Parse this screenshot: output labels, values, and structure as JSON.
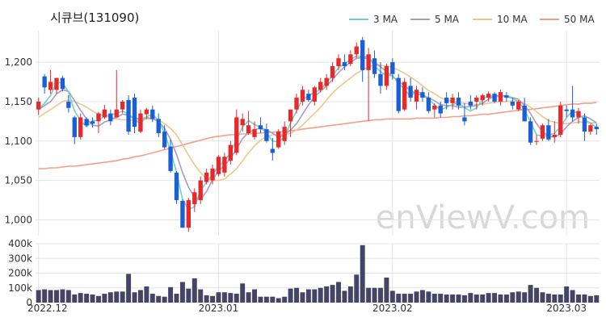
{
  "title": "시큐브(131090)",
  "watermark": "enViewV.com",
  "colors": {
    "up": "#e8282b",
    "down": "#1a5fd6",
    "ma3": "#6ed3c9",
    "ma5": "#a99bc9",
    "ma10": "#f0c58a",
    "ma50": "#f3a08a",
    "volume": "#444466",
    "grid": "#e4e4e4",
    "watermark": "#d8d8d8"
  },
  "chart_data": [
    {
      "type": "candlestick",
      "legend": [
        "3 MA",
        "5 MA",
        "10 MA",
        "50 MA"
      ],
      "legend_position": "top-right",
      "grid": true,
      "ylim": [
        980,
        1240
      ],
      "yticks": [
        1000,
        1050,
        1100,
        1150,
        1200
      ],
      "ytick_labels": [
        "1,000",
        "1,050",
        "1,100",
        "1,150",
        "1,200"
      ],
      "xtick_labels": [
        "2022.12",
        "2023.01",
        "2023.02",
        "2023.03"
      ],
      "xtick_index": [
        0,
        30,
        59,
        88
      ],
      "ohlc": [
        [
          1140,
          1155,
          1133,
          1150
        ],
        [
          1182,
          1185,
          1160,
          1168
        ],
        [
          1165,
          1190,
          1160,
          1175
        ],
        [
          1165,
          1180,
          1160,
          1180
        ],
        [
          1180,
          1183,
          1163,
          1166
        ],
        [
          1150,
          1158,
          1136,
          1142
        ],
        [
          1130,
          1132,
          1096,
          1105
        ],
        [
          1105,
          1135,
          1102,
          1130
        ],
        [
          1128,
          1130,
          1118,
          1120
        ],
        [
          1125,
          1130,
          1117,
          1122
        ],
        [
          1125,
          1137,
          1110,
          1135
        ],
        [
          1130,
          1146,
          1128,
          1140
        ],
        [
          1135,
          1140,
          1120,
          1125
        ],
        [
          1130,
          1190,
          1130,
          1140
        ],
        [
          1140,
          1152,
          1135,
          1150
        ],
        [
          1152,
          1158,
          1108,
          1112
        ],
        [
          1155,
          1160,
          1110,
          1118
        ],
        [
          1112,
          1140,
          1110,
          1135
        ],
        [
          1134,
          1142,
          1128,
          1140
        ],
        [
          1140,
          1145,
          1124,
          1128
        ],
        [
          1128,
          1135,
          1105,
          1110
        ],
        [
          1112,
          1120,
          1090,
          1092
        ],
        [
          1093,
          1102,
          1060,
          1062
        ],
        [
          1060,
          1062,
          1020,
          1025
        ],
        [
          1024,
          1026,
          990,
          990
        ],
        [
          990,
          1028,
          985,
          1025
        ],
        [
          1020,
          1040,
          1010,
          1035
        ],
        [
          1025,
          1055,
          1020,
          1050
        ],
        [
          1048,
          1065,
          1045,
          1060
        ],
        [
          1050,
          1070,
          1045,
          1065
        ],
        [
          1058,
          1082,
          1055,
          1080
        ],
        [
          1060,
          1085,
          1055,
          1080
        ],
        [
          1075,
          1100,
          1070,
          1095
        ],
        [
          1085,
          1140,
          1082,
          1130
        ],
        [
          1120,
          1135,
          1112,
          1128
        ],
        [
          1110,
          1138,
          1108,
          1120
        ],
        [
          1105,
          1125,
          1102,
          1115
        ],
        [
          1120,
          1130,
          1110,
          1115
        ],
        [
          1115,
          1122,
          1098,
          1100
        ],
        [
          1090,
          1104,
          1075,
          1085
        ],
        [
          1092,
          1115,
          1090,
          1112
        ],
        [
          1100,
          1125,
          1095,
          1118
        ],
        [
          1125,
          1140,
          1105,
          1140
        ],
        [
          1140,
          1160,
          1135,
          1155
        ],
        [
          1150,
          1170,
          1145,
          1165
        ],
        [
          1160,
          1165,
          1150,
          1152
        ],
        [
          1150,
          1170,
          1145,
          1168
        ],
        [
          1165,
          1180,
          1162,
          1175
        ],
        [
          1170,
          1185,
          1165,
          1180
        ],
        [
          1180,
          1200,
          1175,
          1195
        ],
        [
          1195,
          1210,
          1190,
          1205
        ],
        [
          1200,
          1210,
          1190,
          1195
        ],
        [
          1198,
          1215,
          1195,
          1210
        ],
        [
          1210,
          1225,
          1205,
          1220
        ],
        [
          1228,
          1232,
          1175,
          1190
        ],
        [
          1190,
          1218,
          1125,
          1210
        ],
        [
          1205,
          1215,
          1180,
          1185
        ],
        [
          1185,
          1200,
          1160,
          1170
        ],
        [
          1170,
          1198,
          1165,
          1195
        ],
        [
          1200,
          1205,
          1178,
          1185
        ],
        [
          1180,
          1185,
          1135,
          1138
        ],
        [
          1140,
          1180,
          1138,
          1175
        ],
        [
          1170,
          1180,
          1150,
          1155
        ],
        [
          1150,
          1170,
          1140,
          1165
        ],
        [
          1162,
          1168,
          1150,
          1155
        ],
        [
          1155,
          1162,
          1135,
          1138
        ],
        [
          1140,
          1148,
          1130,
          1145
        ],
        [
          1145,
          1150,
          1130,
          1135
        ],
        [
          1155,
          1162,
          1140,
          1148
        ],
        [
          1148,
          1160,
          1140,
          1155
        ],
        [
          1155,
          1162,
          1140,
          1145
        ],
        [
          1130,
          1148,
          1120,
          1125
        ],
        [
          1150,
          1158,
          1140,
          1145
        ],
        [
          1150,
          1158,
          1140,
          1155
        ],
        [
          1152,
          1160,
          1145,
          1158
        ],
        [
          1155,
          1163,
          1150,
          1160
        ],
        [
          1160,
          1162,
          1148,
          1150
        ],
        [
          1150,
          1165,
          1145,
          1162
        ],
        [
          1158,
          1162,
          1150,
          1155
        ],
        [
          1150,
          1155,
          1140,
          1145
        ],
        [
          1140,
          1152,
          1138,
          1150
        ],
        [
          1145,
          1155,
          1125,
          1125
        ],
        [
          1125,
          1130,
          1095,
          1098
        ],
        [
          1100,
          1108,
          1095,
          1100
        ],
        [
          1103,
          1122,
          1100,
          1120
        ],
        [
          1120,
          1128,
          1100,
          1102
        ],
        [
          1105,
          1125,
          1098,
          1108
        ],
        [
          1108,
          1150,
          1105,
          1145
        ],
        [
          1140,
          1145,
          1130,
          1138
        ],
        [
          1140,
          1170,
          1125,
          1130
        ],
        [
          1130,
          1142,
          1122,
          1138
        ],
        [
          1130,
          1135,
          1100,
          1112
        ],
        [
          1112,
          1122,
          1108,
          1120
        ],
        [
          1118,
          1122,
          1108,
          1115
        ]
      ],
      "ma3": [
        1140,
        1148,
        1158,
        1174,
        1174,
        1162,
        1138,
        1126,
        1118,
        1126,
        1126,
        1132,
        1133,
        1135,
        1138,
        1134,
        1127,
        1122,
        1131,
        1134,
        1126,
        1110,
        1088,
        1060,
        1026,
        1013,
        1017,
        1037,
        1048,
        1058,
        1068,
        1075,
        1085,
        1102,
        1118,
        1126,
        1121,
        1117,
        1110,
        1100,
        1099,
        1105,
        1123,
        1138,
        1153,
        1157,
        1162,
        1165,
        1174,
        1183,
        1193,
        1198,
        1203,
        1208,
        1207,
        1207,
        1195,
        1188,
        1183,
        1183,
        1173,
        1166,
        1156,
        1165,
        1158,
        1153,
        1146,
        1139,
        1143,
        1146,
        1149,
        1142,
        1138,
        1142,
        1153,
        1158,
        1156,
        1157,
        1156,
        1154,
        1150,
        1140,
        1124,
        1108,
        1106,
        1107,
        1110,
        1118,
        1130,
        1138,
        1135,
        1127,
        1123,
        1117
      ],
      "ma5": [
        1140,
        1145,
        1150,
        1160,
        1165,
        1163,
        1151,
        1139,
        1128,
        1120,
        1119,
        1124,
        1127,
        1130,
        1134,
        1133,
        1129,
        1128,
        1130,
        1128,
        1125,
        1116,
        1102,
        1083,
        1060,
        1041,
        1029,
        1026,
        1036,
        1051,
        1062,
        1069,
        1078,
        1090,
        1103,
        1111,
        1114,
        1117,
        1114,
        1110,
        1105,
        1108,
        1114,
        1122,
        1134,
        1146,
        1156,
        1163,
        1170,
        1178,
        1187,
        1194,
        1200,
        1205,
        1206,
        1204,
        1200,
        1194,
        1188,
        1182,
        1176,
        1170,
        1164,
        1160,
        1158,
        1155,
        1151,
        1146,
        1145,
        1145,
        1143,
        1143,
        1144,
        1145,
        1148,
        1153,
        1157,
        1158,
        1157,
        1155,
        1153,
        1145,
        1135,
        1122,
        1112,
        1106,
        1105,
        1109,
        1118,
        1125,
        1130,
        1132,
        1128,
        1123
      ],
      "ma10": [
        1130,
        1135,
        1140,
        1145,
        1150,
        1152,
        1150,
        1147,
        1143,
        1138,
        1134,
        1132,
        1130,
        1128,
        1127,
        1127,
        1126,
        1127,
        1128,
        1128,
        1127,
        1122,
        1116,
        1108,
        1095,
        1082,
        1070,
        1060,
        1052,
        1050,
        1050,
        1052,
        1058,
        1065,
        1075,
        1085,
        1094,
        1101,
        1106,
        1108,
        1108,
        1108,
        1110,
        1114,
        1120,
        1128,
        1135,
        1143,
        1152,
        1161,
        1168,
        1174,
        1180,
        1186,
        1190,
        1194,
        1196,
        1196,
        1195,
        1193,
        1190,
        1186,
        1181,
        1176,
        1170,
        1164,
        1160,
        1155,
        1152,
        1150,
        1149,
        1148,
        1147,
        1146,
        1147,
        1148,
        1149,
        1150,
        1150,
        1151,
        1150,
        1148,
        1143,
        1137,
        1131,
        1126,
        1124,
        1122,
        1122,
        1123,
        1124,
        1124,
        1123,
        1123
      ],
      "ma50": [
        1065,
        1065,
        1066,
        1066,
        1067,
        1068,
        1068,
        1069,
        1070,
        1071,
        1072,
        1073,
        1074,
        1075,
        1077,
        1078,
        1080,
        1081,
        1083,
        1085,
        1087,
        1089,
        1091,
        1093,
        1095,
        1097,
        1099,
        1101,
        1103,
        1105,
        1106,
        1107,
        1108,
        1108,
        1109,
        1109,
        1110,
        1110,
        1111,
        1111,
        1112,
        1112,
        1113,
        1114,
        1115,
        1116,
        1117,
        1118,
        1119,
        1120,
        1121,
        1122,
        1123,
        1124,
        1125,
        1126,
        1127,
        1127,
        1128,
        1128,
        1128,
        1128,
        1128,
        1129,
        1129,
        1129,
        1129,
        1130,
        1130,
        1131,
        1131,
        1132,
        1132,
        1133,
        1134,
        1134,
        1135,
        1136,
        1137,
        1138,
        1139,
        1140,
        1140,
        1141,
        1142,
        1143,
        1144,
        1145,
        1146,
        1147,
        1147,
        1148,
        1148,
        1149
      ]
    },
    {
      "type": "bar",
      "name": "volume",
      "ylim": [
        0,
        400000
      ],
      "yticks": [
        0,
        100000,
        200000,
        300000,
        400000
      ],
      "ytick_labels": [
        "0",
        "100k",
        "200k",
        "300k",
        "400k"
      ],
      "values": [
        85000,
        90000,
        85000,
        85000,
        90000,
        85000,
        55000,
        65000,
        60000,
        55000,
        45000,
        60000,
        70000,
        75000,
        75000,
        195000,
        70000,
        85000,
        110000,
        60000,
        45000,
        40000,
        105000,
        60000,
        140000,
        95000,
        165000,
        90000,
        50000,
        45000,
        70000,
        70000,
        65000,
        60000,
        130000,
        70000,
        90000,
        40000,
        40000,
        40000,
        30000,
        40000,
        95000,
        100000,
        70000,
        90000,
        90000,
        100000,
        110000,
        120000,
        140000,
        80000,
        110000,
        190000,
        390000,
        100000,
        100000,
        100000,
        170000,
        80000,
        60000,
        60000,
        60000,
        75000,
        85000,
        75000,
        60000,
        60000,
        55000,
        55000,
        55000,
        50000,
        65000,
        55000,
        55000,
        65000,
        65000,
        55000,
        55000,
        70000,
        75000,
        70000,
        120000,
        100000,
        70000,
        60000,
        55000,
        55000,
        110000,
        85000,
        55000,
        55000,
        45000,
        50000
      ]
    }
  ]
}
